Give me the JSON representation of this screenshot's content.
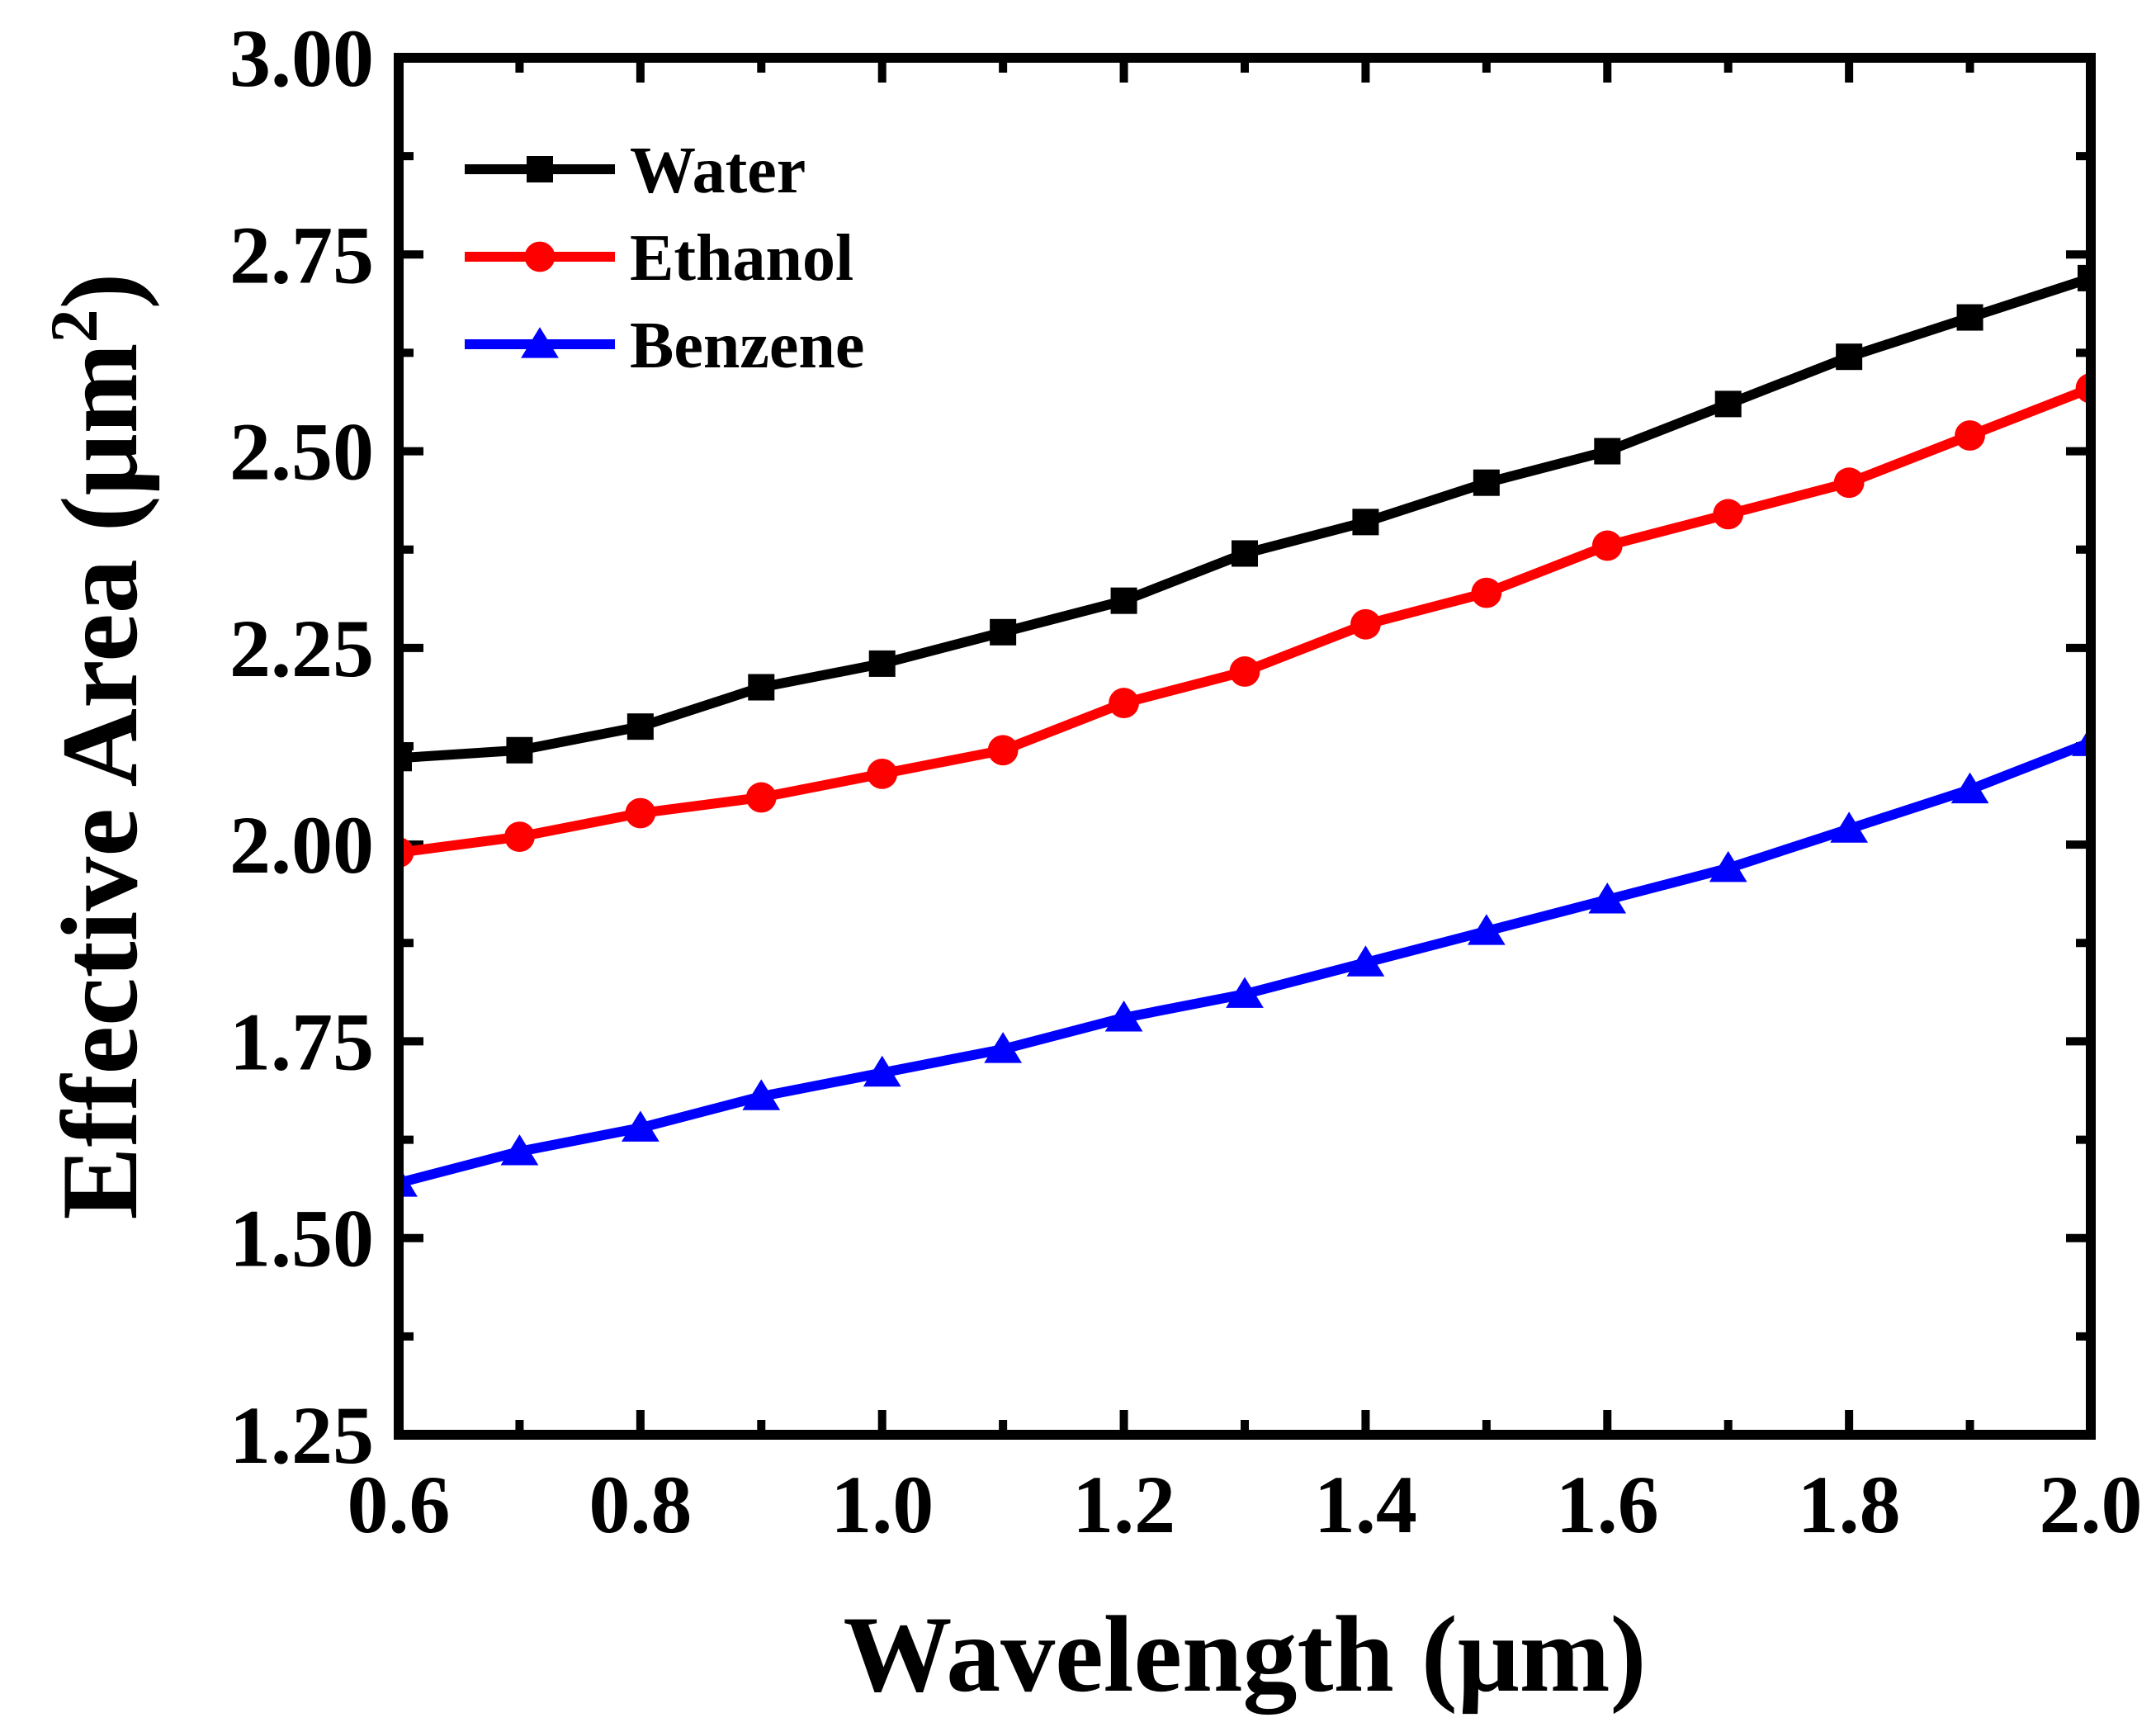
{
  "chart_data": {
    "type": "line",
    "title": "",
    "xlabel": "Wavelength (μm)",
    "ylabel_main": "Effective Area (μm",
    "ylabel_sup": "2",
    "ylabel_close": ")",
    "xlim": [
      0.6,
      2.0
    ],
    "ylim": [
      1.25,
      3.0
    ],
    "x_ticks": [
      0.6,
      0.8,
      1.0,
      1.2,
      1.4,
      1.6,
      1.8,
      2.0
    ],
    "x_tick_labels": [
      "0.6",
      "0.8",
      "1.0",
      "1.2",
      "1.4",
      "1.6",
      "1.8",
      "2.0"
    ],
    "y_ticks": [
      1.25,
      1.5,
      1.75,
      2.0,
      2.25,
      2.5,
      2.75,
      3.0
    ],
    "y_tick_labels": [
      "1.25",
      "1.50",
      "1.75",
      "2.00",
      "2.25",
      "2.50",
      "2.75",
      "3.00"
    ],
    "grid": false,
    "legend_position": "top-left",
    "x": [
      0.6,
      0.7,
      0.8,
      0.9,
      1.0,
      1.1,
      1.2,
      1.3,
      1.4,
      1.5,
      1.6,
      1.7,
      1.8,
      1.9,
      2.0
    ],
    "series": [
      {
        "name": "Water",
        "color": "#000000",
        "marker": "square",
        "values": [
          2.11,
          2.12,
          2.15,
          2.2,
          2.23,
          2.27,
          2.31,
          2.37,
          2.41,
          2.46,
          2.5,
          2.56,
          2.62,
          2.67,
          2.72
        ]
      },
      {
        "name": "Ethanol",
        "color": "#ff0000",
        "marker": "circle",
        "values": [
          1.99,
          2.01,
          2.04,
          2.06,
          2.09,
          2.12,
          2.18,
          2.22,
          2.28,
          2.32,
          2.38,
          2.42,
          2.46,
          2.52,
          2.58
        ]
      },
      {
        "name": "Benzene",
        "color": "#0000ff",
        "marker": "triangle",
        "values": [
          1.57,
          1.61,
          1.64,
          1.68,
          1.71,
          1.74,
          1.78,
          1.81,
          1.85,
          1.89,
          1.93,
          1.97,
          2.02,
          2.07,
          2.13
        ]
      }
    ]
  }
}
